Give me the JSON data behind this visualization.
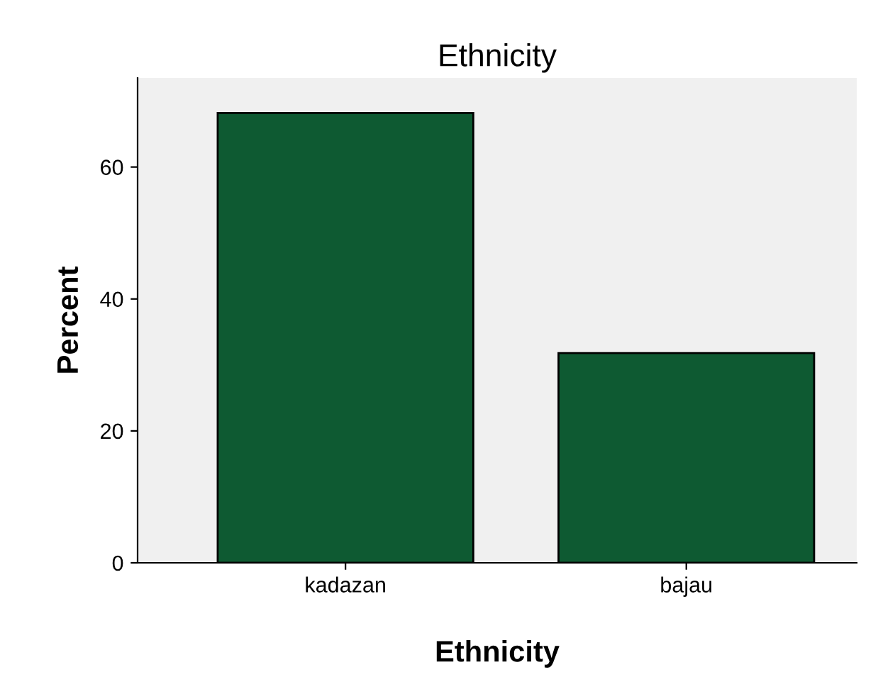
{
  "chart_data": {
    "type": "bar",
    "title": "Ethnicity",
    "xlabel": "Ethnicity",
    "ylabel": "Percent",
    "categories": [
      "kadazan",
      "bajau"
    ],
    "values": [
      68.2,
      31.8
    ],
    "color": "#0e5a32",
    "ylim": [
      0,
      73.5
    ],
    "yticks": [
      0,
      20,
      40,
      60
    ],
    "grid": false
  }
}
